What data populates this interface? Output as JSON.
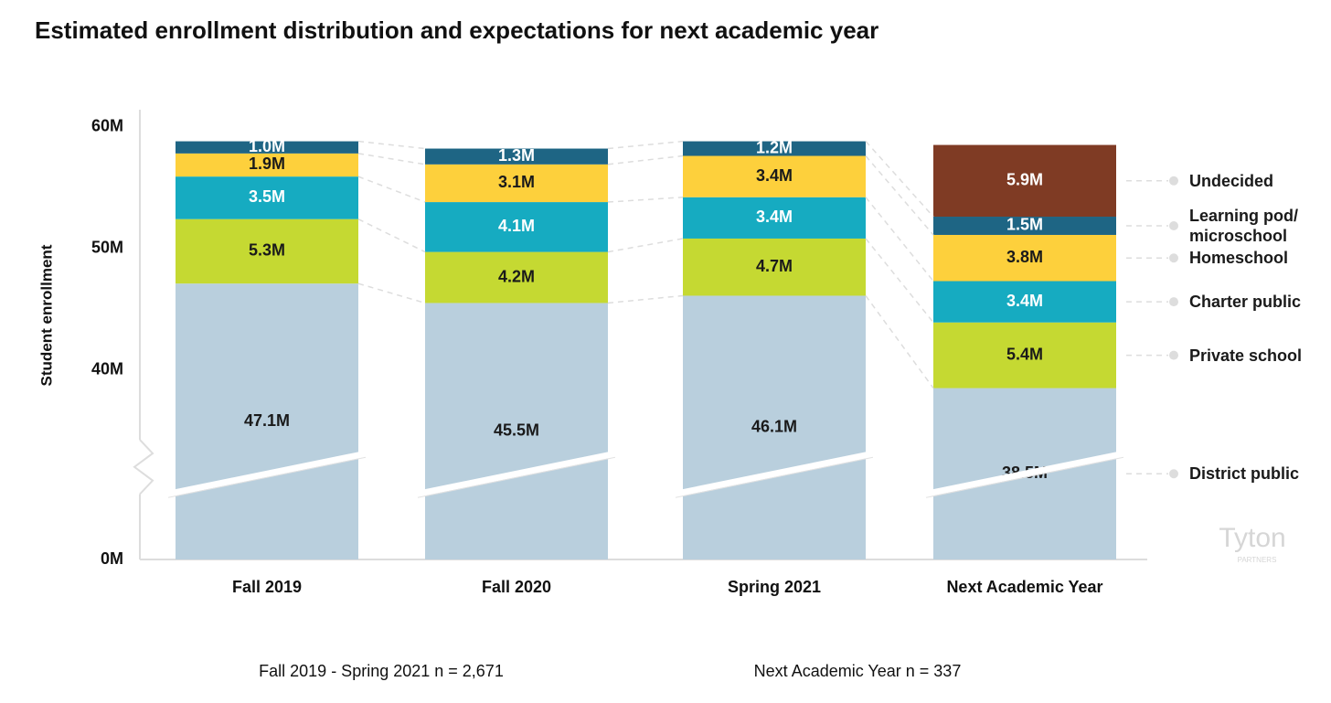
{
  "chart_data": {
    "type": "bar",
    "stacked": true,
    "title": "Estimated enrollment distribution and expectations for next academic year",
    "y_label": "Student enrollment",
    "categories": [
      "Fall 2019",
      "Fall 2020",
      "Spring 2021",
      "Next Academic Year"
    ],
    "series": [
      {
        "name": "District public",
        "color": "#b9cfdd",
        "values": [
          47.1,
          45.5,
          46.1,
          38.5
        ],
        "value_labels": [
          "47.1M",
          "45.5M",
          "46.1M",
          "38.5M"
        ]
      },
      {
        "name": "Private school",
        "color": "#c5d932",
        "values": [
          5.3,
          4.2,
          4.7,
          5.4
        ],
        "value_labels": [
          "5.3M",
          "4.2M",
          "4.7M",
          "5.4M"
        ]
      },
      {
        "name": "Charter public",
        "color": "#16abc1",
        "values": [
          3.5,
          4.1,
          3.4,
          3.4
        ],
        "value_labels": [
          "3.5M",
          "4.1M",
          "3.4M",
          "3.4M"
        ]
      },
      {
        "name": "Homeschool",
        "color": "#fdd03c",
        "values": [
          1.9,
          3.1,
          3.4,
          3.8
        ],
        "value_labels": [
          "1.9M",
          "3.1M",
          "3.4M",
          "3.8M"
        ]
      },
      {
        "name": "Learning pod/ microschool",
        "color": "#1e6584",
        "values": [
          1.0,
          1.3,
          1.2,
          1.5
        ],
        "value_labels": [
          "1.0M",
          "1.3M",
          "1.2M",
          "1.5M"
        ]
      },
      {
        "name": "Undecided",
        "color": "#7f3b24",
        "values": [
          null,
          null,
          null,
          5.9
        ],
        "value_labels": [
          null,
          null,
          null,
          "5.9M"
        ]
      }
    ],
    "ylim": [
      0,
      62
    ],
    "axis_break": [
      5,
      35
    ],
    "yticks": [
      {
        "value": 0,
        "label": "0M"
      },
      {
        "value": 40,
        "label": "40M"
      },
      {
        "value": 50,
        "label": "50M"
      },
      {
        "value": 60,
        "label": "60M"
      }
    ],
    "legend": "right",
    "notes": [
      "Fall 2019 - Spring 2021 n = 2,671",
      "Next Academic Year n = 337"
    ],
    "logo": "Tyton",
    "logo_sub": "PARTNERS"
  }
}
